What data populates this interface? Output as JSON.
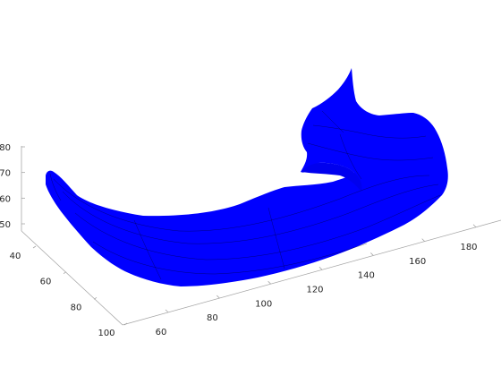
{
  "chart_data": {
    "type": "surface",
    "title": "",
    "xlabel": "",
    "ylabel": "",
    "zlabel": "",
    "x_ticks": [
      "60",
      "80",
      "100",
      "120",
      "140",
      "160",
      "180"
    ],
    "y_ticks": [
      "40",
      "60",
      "80",
      "100"
    ],
    "z_ticks": [
      "50",
      "60",
      "70",
      "80"
    ],
    "surface_color": "#0000ff",
    "edge_color": "#000000",
    "axis_color": "#a6a6a6",
    "tick_text_color": "#262626",
    "grid": false
  }
}
